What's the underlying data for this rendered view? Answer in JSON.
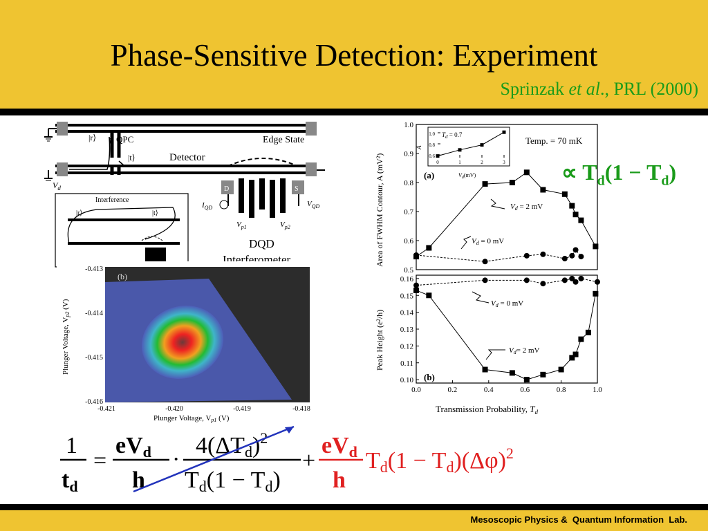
{
  "slide": {
    "title": "Phase-Sensitive Detection: Experiment",
    "citation": {
      "author": "Sprinzak",
      "etal": "et al",
      "rest": "., PRL (2000)"
    },
    "footer": "Mesoscopic Physics &  Quantum Information  Lab."
  },
  "colors": {
    "header": "#EFC431",
    "green": "#1a9b1a",
    "red": "#e02020",
    "arrow": "#2233bb"
  },
  "schematic": {
    "qpc": "QPC",
    "r": "|r⟩",
    "t": "|t⟩",
    "detector": "Detector",
    "edge_state": "Edge State",
    "vd": "V",
    "vd_sub": "d",
    "d": "D",
    "s": "S",
    "iqd": "I",
    "iqd_sub": "QD",
    "vqd": "V",
    "vqd_sub": "QD",
    "vp1": "V",
    "vp1_sub": "p1",
    "vp2": "V",
    "vp2_sub": "p2",
    "dqd": "DQD",
    "interferometer": "Interferometer",
    "inset_title": "Interference",
    "inset_r": "|r⟩",
    "inset_t": "|t⟩"
  },
  "colormap": {
    "label": "(b)",
    "xlabel": "Plunger Voltage, V",
    "xlabel_sub": "p1",
    "xlabel_unit": " (V)",
    "ylabel": "Plunger Voltage, V",
    "ylabel_sub": "p2",
    "ylabel_unit": " (V)",
    "xticks": [
      "-0.421",
      "-0.420",
      "-0.419",
      "-0.418"
    ],
    "yticks": [
      "-0.413",
      "-0.414",
      "-0.415",
      "-0.416"
    ]
  },
  "plot_a": {
    "label": "(a)",
    "ylabel": "Area of FWHM Contour, A  (mV²)",
    "temp": "Temp. = 70 mK",
    "ann_2mV": "V",
    "ann_2mV_sub": "d",
    "ann_2mV_val": " = 2 mV",
    "ann_0mV": "V",
    "ann_0mV_sub": "d",
    "ann_0mV_val": " = 0 mV",
    "yticks": [
      "1.0",
      "0.9",
      "0.8",
      "0.7",
      "0.6",
      "0.5"
    ]
  },
  "inset": {
    "label": "T",
    "label_sub": "d",
    "label_val": " = 0.7",
    "ylabel": "A",
    "xlabel": "V",
    "xlabel_sub": "d",
    "xlabel_unit": "(mV)",
    "xticks": [
      "0",
      "1",
      "2",
      "3"
    ],
    "yticks": [
      "1.0",
      "0.8",
      "0.6"
    ]
  },
  "plot_b": {
    "label": "(b)",
    "ylabel": "Peak Height  (e²/h)",
    "xlabel": "Transmission Probability, ",
    "xlabel_var": "T",
    "xlabel_sub": "d",
    "ann_0mV": "V",
    "ann_0mV_sub": "d",
    "ann_0mV_val": " = 0 mV",
    "ann_2mV": "V",
    "ann_2mV_sub": "d",
    "ann_2mV_val": "= 2 mV",
    "yticks": [
      "0.16",
      "0.15",
      "0.14",
      "0.13",
      "0.12",
      "0.11",
      "0.10"
    ],
    "xticks": [
      "0.0",
      "0.2",
      "0.4",
      "0.6",
      "0.8",
      "1.0"
    ]
  },
  "proportional": "∝ T",
  "proportional_sub": "d",
  "proportional_rest": "(1 − T",
  "proportional_sub2": "d",
  "proportional_close": ")",
  "formula": {
    "one": "1",
    "td": "t",
    "td_sub": "d",
    "eq": "=",
    "ev": "eV",
    "ev_sub": "d",
    "h": "h",
    "dot": "·",
    "num": "4(ΔT",
    "num_sub": "d",
    "num_close": ")",
    "num_exp": "2",
    "den": "T",
    "den_sub": "d",
    "den_mid": "(1 − T",
    "den_sub2": "d",
    "den_close": ")",
    "plus": "+",
    "tail": "T",
    "tail_sub": "d",
    "tail_mid": "(1 − T",
    "tail_sub2": "d",
    "tail_phase": ")(Δφ)",
    "tail_exp": "2"
  },
  "chart_data": [
    {
      "type": "scatter",
      "title": "",
      "xlabel": "Transmission Probability, T_d",
      "ylabel": "Area of FWHM Contour, A (mV²)",
      "xlim": [
        0.0,
        1.0
      ],
      "ylim": [
        0.5,
        1.0
      ],
      "series": [
        {
          "name": "V_d = 2 mV",
          "x": [
            0.0,
            0.07,
            0.38,
            0.53,
            0.61,
            0.7,
            0.82,
            0.86,
            0.88,
            0.91,
            0.99
          ],
          "y": [
            0.545,
            0.575,
            0.795,
            0.8,
            0.835,
            0.775,
            0.76,
            0.72,
            0.69,
            0.67,
            0.58
          ]
        },
        {
          "name": "V_d = 0 mV",
          "x": [
            0.0,
            0.38,
            0.61,
            0.7,
            0.82,
            0.86,
            0.88,
            0.91
          ],
          "y": [
            0.55,
            0.528,
            0.548,
            0.553,
            0.538,
            0.548,
            0.568,
            0.545
          ]
        }
      ]
    },
    {
      "type": "line",
      "title": "",
      "xlabel": "V_d (mV)",
      "ylabel": "A",
      "xlim": [
        0,
        3
      ],
      "ylim": [
        0.55,
        1.05
      ],
      "series": [
        {
          "name": "T_d = 0.7",
          "x": [
            0,
            1,
            2,
            3
          ],
          "y": [
            0.58,
            0.69,
            0.78,
            1.01
          ]
        }
      ]
    },
    {
      "type": "scatter",
      "title": "",
      "xlabel": "Transmission Probability, T_d",
      "ylabel": "Peak Height (e²/h)",
      "xlim": [
        0.0,
        1.0
      ],
      "ylim": [
        0.098,
        0.162
      ],
      "series": [
        {
          "name": "V_d = 0 mV",
          "x": [
            0.0,
            0.38,
            0.61,
            0.7,
            0.82,
            0.86,
            0.88,
            0.91,
            1.0
          ],
          "y": [
            0.156,
            0.159,
            0.159,
            0.157,
            0.159,
            0.16,
            0.158,
            0.16,
            0.158
          ]
        },
        {
          "name": "V_d = 2 mV",
          "x": [
            0.0,
            0.07,
            0.38,
            0.53,
            0.61,
            0.7,
            0.8,
            0.86,
            0.88,
            0.91,
            0.95,
            0.99
          ],
          "y": [
            0.153,
            0.15,
            0.106,
            0.104,
            0.1,
            0.103,
            0.106,
            0.113,
            0.115,
            0.124,
            0.128,
            0.151
          ]
        }
      ]
    }
  ]
}
